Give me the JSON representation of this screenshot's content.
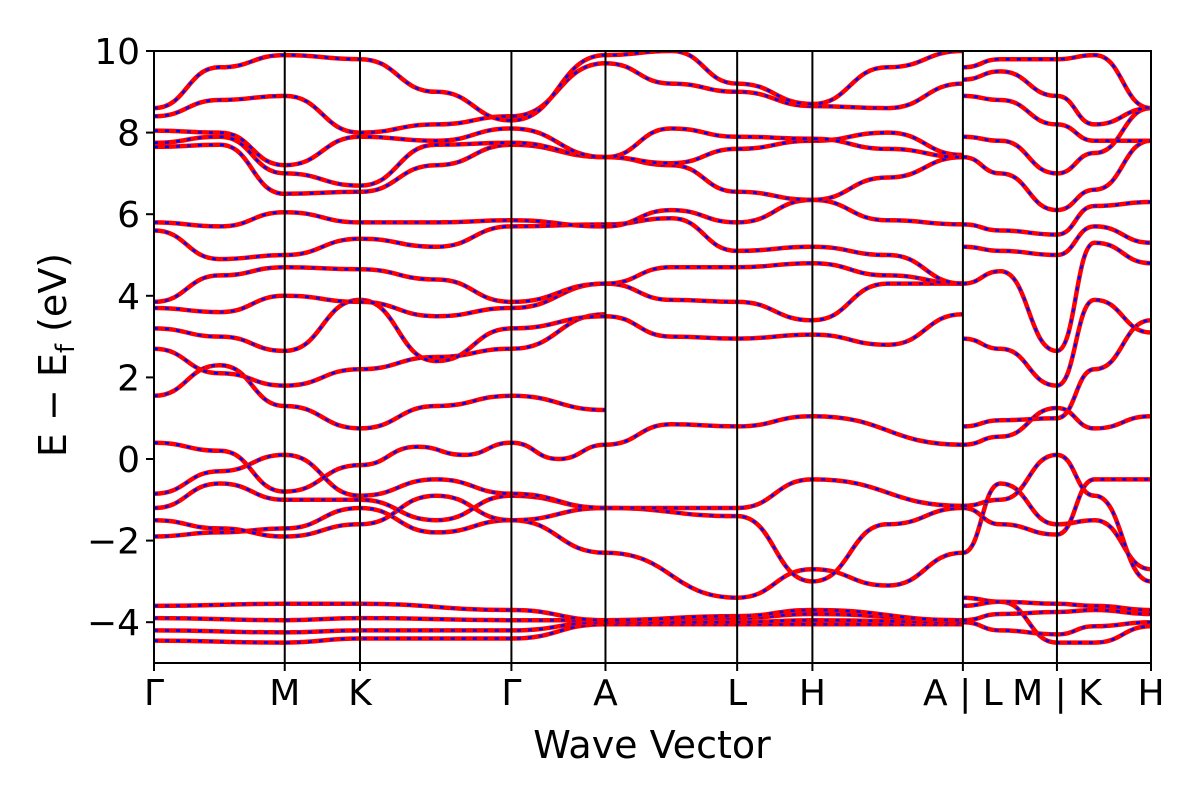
{
  "chart_data": {
    "type": "line",
    "xlabel": "Wave Vector",
    "ylabel": "E − E",
    "ylabel_sub": "f",
    "ylabel_unit": " (eV)",
    "ylim": [
      -5,
      10
    ],
    "yticks": [
      10,
      8,
      6,
      4,
      2,
      0,
      -2,
      -4
    ],
    "ytick_labels": [
      "10",
      "8",
      "6",
      "4",
      "2",
      "0",
      "−2",
      "−4"
    ],
    "grid": false,
    "path_positions": [
      0,
      1.39,
      2.19,
      3.8,
      4.8,
      6.2,
      7.0,
      8.6,
      9.6,
      10.6
    ],
    "path_labels": [
      "Γ",
      "M",
      "K",
      "Γ",
      "A",
      "L",
      "H",
      "A | L",
      "M | K",
      "H"
    ],
    "xlim": [
      0,
      10.6
    ],
    "series_colors": {
      "spin_up": "#ff0000",
      "spin_down": "#0000ff"
    },
    "bands": [
      {
        "x": [
          0,
          1.39,
          2.19,
          3.8,
          4.8,
          6.2,
          7.0,
          8.6
        ],
        "y": [
          -4.45,
          -4.5,
          -4.4,
          -4.4,
          -4.05,
          -4.05,
          -4.05,
          -4.05
        ]
      },
      {
        "x": [
          0,
          1.39,
          2.19,
          3.8,
          4.8,
          6.2,
          7.0,
          8.6
        ],
        "y": [
          -4.2,
          -4.25,
          -4.2,
          -4.2,
          -4.0,
          -4.0,
          -3.95,
          -4.0
        ]
      },
      {
        "x": [
          0,
          1.39,
          2.19,
          3.8,
          4.8,
          6.2,
          7.0,
          8.6
        ],
        "y": [
          -3.9,
          -3.95,
          -3.9,
          -3.95,
          -3.95,
          -3.9,
          -3.8,
          -3.95
        ]
      },
      {
        "x": [
          0,
          1.39,
          2.19,
          3.8,
          4.8,
          6.2,
          7.0,
          8.6
        ],
        "y": [
          -3.6,
          -3.55,
          -3.55,
          -3.7,
          -3.95,
          -3.85,
          -3.7,
          -3.95
        ]
      },
      {
        "x": [
          0,
          0.7,
          1.39,
          2.19,
          3.0,
          3.8,
          4.8,
          6.2,
          7.0,
          7.8,
          8.6
        ],
        "y": [
          -1.9,
          -1.8,
          -1.7,
          -1.2,
          -1.8,
          -1.5,
          -2.3,
          -3.4,
          -2.7,
          -3.1,
          -2.3
        ]
      },
      {
        "x": [
          0,
          0.7,
          1.39,
          2.19,
          3.0,
          3.8,
          4.8,
          6.2,
          7.0,
          7.8,
          8.6
        ],
        "y": [
          -1.5,
          -1.7,
          -1.9,
          -1.6,
          -0.9,
          -1.5,
          -1.2,
          -1.4,
          -3.0,
          -1.6,
          -1.2
        ]
      },
      {
        "x": [
          0,
          0.7,
          1.39,
          2.19,
          3.0,
          3.8,
          4.8,
          6.2,
          7.0,
          8.6
        ],
        "y": [
          -1.2,
          -0.6,
          -1.0,
          -1.0,
          -1.5,
          -0.9,
          -1.2,
          -1.2,
          -0.5,
          -1.15
        ]
      },
      {
        "x": [
          0,
          0.7,
          1.39,
          2.19,
          3.0,
          3.8,
          4.8
        ],
        "y": [
          -0.85,
          -0.3,
          0.1,
          -0.9,
          -0.5,
          -0.85,
          -1.2
        ]
      },
      {
        "x": [
          0,
          0.7,
          1.39,
          2.19,
          2.8,
          3.3,
          3.8,
          4.3,
          4.8,
          5.5,
          6.2,
          7.0,
          8.6
        ],
        "y": [
          0.4,
          0.2,
          -0.8,
          -0.15,
          0.3,
          0.1,
          0.4,
          0.0,
          0.35,
          0.85,
          0.8,
          1.05,
          0.35
        ]
      },
      {
        "x": [
          0,
          0.7,
          1.39,
          2.19,
          3.0,
          3.8,
          4.8
        ],
        "y": [
          1.55,
          2.3,
          1.3,
          0.75,
          1.3,
          1.55,
          1.2
        ]
      },
      {
        "x": [
          0,
          0.7,
          1.39,
          2.19,
          3.0,
          3.8,
          4.8
        ],
        "y": [
          2.7,
          2.1,
          1.8,
          2.2,
          2.5,
          2.7,
          3.55
        ]
      },
      {
        "x": [
          0,
          0.7,
          1.39,
          2.19,
          3.0,
          3.8,
          4.8,
          5.5,
          6.2,
          7.0,
          7.8,
          8.6
        ],
        "y": [
          3.2,
          3.0,
          2.65,
          3.9,
          2.4,
          3.2,
          3.5,
          3.0,
          2.95,
          3.05,
          2.8,
          3.55
        ]
      },
      {
        "x": [
          0,
          0.7,
          1.39,
          2.19,
          3.0,
          3.8,
          4.8,
          5.5,
          6.2,
          7.0,
          7.8,
          8.6
        ],
        "y": [
          3.7,
          3.6,
          4.0,
          3.85,
          3.5,
          3.7,
          4.3,
          3.9,
          3.85,
          3.4,
          4.3,
          4.3
        ]
      },
      {
        "x": [
          0,
          0.7,
          1.39,
          2.19,
          3.0,
          3.8,
          4.8,
          5.5,
          6.2,
          7.0,
          7.8,
          8.6
        ],
        "y": [
          3.85,
          4.5,
          4.7,
          4.65,
          4.4,
          3.85,
          4.3,
          4.7,
          4.7,
          4.8,
          4.5,
          4.3
        ]
      },
      {
        "x": [
          0,
          0.7,
          1.39,
          2.19,
          3.0,
          3.8,
          4.8,
          5.5,
          6.2,
          7.0,
          7.8,
          8.6
        ],
        "y": [
          5.6,
          4.9,
          5.0,
          5.4,
          5.2,
          5.7,
          5.75,
          5.9,
          5.1,
          5.2,
          5.0,
          4.3
        ]
      },
      {
        "x": [
          0,
          0.7,
          1.39,
          2.19,
          3.0,
          3.8,
          4.8,
          5.5,
          6.2,
          7.0,
          7.8,
          8.6
        ],
        "y": [
          5.8,
          5.7,
          6.05,
          5.8,
          5.8,
          5.85,
          5.7,
          6.1,
          5.8,
          6.35,
          5.85,
          5.75
        ]
      },
      {
        "x": [
          0,
          0.7,
          1.39,
          2.19,
          3.0,
          3.8,
          4.8,
          5.5,
          6.2,
          7.0,
          7.8,
          8.6
        ],
        "y": [
          7.65,
          7.7,
          6.5,
          6.55,
          7.2,
          7.7,
          7.4,
          7.2,
          6.55,
          6.35,
          6.9,
          7.4
        ]
      },
      {
        "x": [
          0,
          0.7,
          1.39,
          2.19,
          3.0,
          3.8,
          4.8,
          5.5,
          6.2,
          7.0,
          7.8,
          8.6
        ],
        "y": [
          7.75,
          7.9,
          7.0,
          6.7,
          7.7,
          7.75,
          7.4,
          7.25,
          7.6,
          7.8,
          8.0,
          7.45
        ]
      },
      {
        "x": [
          0,
          0.7,
          1.39,
          2.19,
          3.0,
          3.8,
          4.8,
          5.5,
          6.2,
          7.0,
          7.8,
          8.6
        ],
        "y": [
          8.05,
          8.0,
          7.2,
          7.9,
          7.8,
          8.1,
          7.4,
          8.1,
          7.9,
          7.85,
          7.6,
          7.4
        ]
      },
      {
        "x": [
          0,
          0.7,
          1.39,
          2.19,
          3.0,
          3.8,
          4.8,
          5.5,
          6.2,
          7.0,
          7.8,
          8.6
        ],
        "y": [
          8.4,
          8.8,
          8.9,
          8.0,
          8.2,
          8.4,
          9.7,
          9.2,
          9.0,
          8.65,
          8.6,
          9.2
        ]
      },
      {
        "x": [
          0,
          0.7,
          1.39,
          2.19,
          3.0,
          3.8,
          4.8,
          5.5,
          6.2,
          7.0,
          7.8,
          8.6
        ],
        "y": [
          8.6,
          9.6,
          9.9,
          9.8,
          9.0,
          8.3,
          9.9,
          10.0,
          9.2,
          8.7,
          9.6,
          10.0
        ]
      },
      {
        "x": [
          8.6,
          9.0,
          9.6,
          10.0,
          10.6
        ],
        "y": [
          -3.4,
          -3.5,
          -4.5,
          -4.5,
          -4.1
        ]
      },
      {
        "x": [
          8.6,
          9.0,
          9.6,
          10.0,
          10.6
        ],
        "y": [
          -4.0,
          -4.2,
          -4.3,
          -4.1,
          -4.0
        ]
      },
      {
        "x": [
          8.6,
          9.0,
          9.6,
          10.0,
          10.6
        ],
        "y": [
          -3.95,
          -3.8,
          -3.75,
          -3.7,
          -3.8
        ]
      },
      {
        "x": [
          8.6,
          9.0,
          9.6,
          10.0,
          10.6
        ],
        "y": [
          -3.6,
          -3.5,
          -3.55,
          -3.6,
          -3.7
        ]
      },
      {
        "x": [
          8.6,
          9.0,
          9.6,
          10.0,
          10.6
        ],
        "y": [
          -2.3,
          -0.6,
          -1.6,
          -1.5,
          -2.7
        ]
      },
      {
        "x": [
          8.6,
          9.0,
          9.6,
          10.0,
          10.6
        ],
        "y": [
          -1.2,
          -1.6,
          -1.85,
          -0.5,
          -0.5
        ]
      },
      {
        "x": [
          8.6,
          9.0,
          9.6,
          10.0,
          10.6
        ],
        "y": [
          -1.15,
          -1.0,
          0.1,
          -0.9,
          -3.0
        ]
      },
      {
        "x": [
          8.6,
          9.0,
          9.6,
          10.0,
          10.6
        ],
        "y": [
          0.35,
          0.55,
          1.25,
          0.75,
          1.05
        ]
      },
      {
        "x": [
          8.6,
          9.0,
          9.6,
          10.0,
          10.6
        ],
        "y": [
          0.8,
          0.95,
          1.0,
          2.2,
          3.4
        ]
      },
      {
        "x": [
          8.6,
          9.0,
          9.6,
          10.0,
          10.6
        ],
        "y": [
          2.95,
          2.7,
          1.8,
          3.9,
          3.1
        ]
      },
      {
        "x": [
          8.6,
          9.0,
          9.6,
          10.0,
          10.6
        ],
        "y": [
          4.3,
          4.6,
          2.65,
          5.3,
          4.8
        ]
      },
      {
        "x": [
          8.6,
          9.0,
          9.6,
          10.0,
          10.6
        ],
        "y": [
          5.2,
          5.1,
          5.0,
          5.7,
          5.3
        ]
      },
      {
        "x": [
          8.6,
          9.0,
          9.6,
          10.0,
          10.6
        ],
        "y": [
          5.75,
          5.6,
          5.5,
          6.2,
          6.3
        ]
      },
      {
        "x": [
          8.6,
          9.0,
          9.6,
          10.0,
          10.6
        ],
        "y": [
          7.4,
          7.0,
          6.1,
          6.6,
          7.8
        ]
      },
      {
        "x": [
          8.6,
          9.0,
          9.6,
          10.0,
          10.6
        ],
        "y": [
          7.9,
          7.8,
          7.0,
          7.5,
          8.6
        ]
      },
      {
        "x": [
          8.6,
          9.0,
          9.6,
          10.0,
          10.6
        ],
        "y": [
          8.9,
          8.8,
          8.2,
          7.8,
          7.8
        ]
      },
      {
        "x": [
          8.6,
          9.0,
          9.6,
          10.0,
          10.6
        ],
        "y": [
          9.3,
          9.5,
          8.9,
          8.2,
          8.6
        ]
      },
      {
        "x": [
          8.6,
          9.0,
          9.6,
          10.0,
          10.6
        ],
        "y": [
          9.6,
          9.8,
          9.8,
          9.9,
          8.6
        ]
      }
    ]
  }
}
